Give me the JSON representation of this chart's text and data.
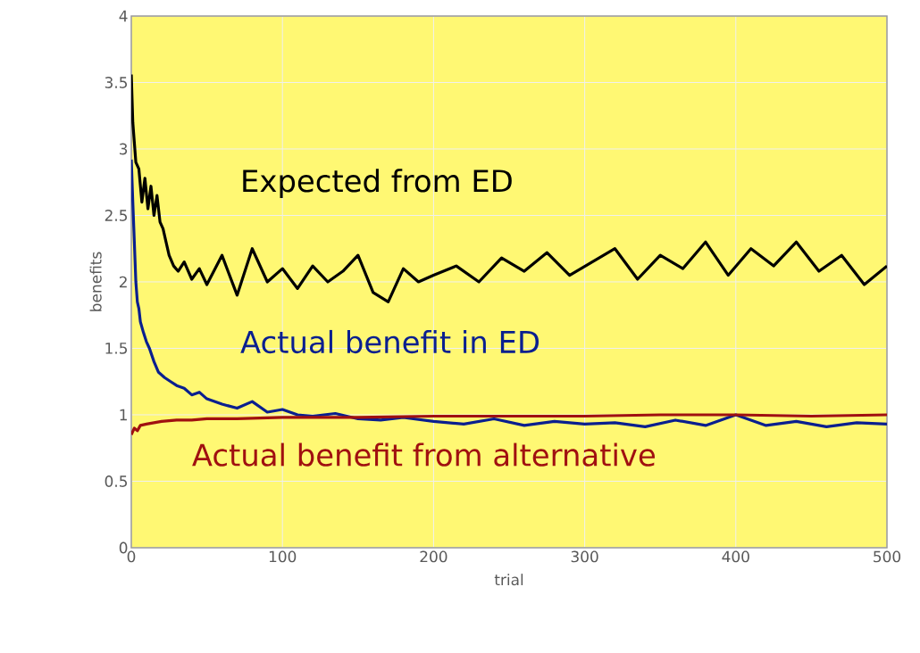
{
  "chart_data": {
    "type": "line",
    "xlabel": "trial",
    "ylabel": "benefits",
    "xlim": [
      0,
      500
    ],
    "ylim": [
      0,
      4
    ],
    "xticks": [
      0,
      100,
      200,
      300,
      400,
      500
    ],
    "yticks": [
      0,
      0.5,
      1,
      1.5,
      2,
      2.5,
      3,
      3.5,
      4
    ],
    "grid": true,
    "legend": false,
    "marker": "none",
    "line_style": "solid",
    "series": [
      {
        "name": "Expected from ED",
        "color": "#000000",
        "x": [
          0,
          1,
          2,
          3,
          5,
          7,
          9,
          11,
          13,
          15,
          17,
          19,
          21,
          23,
          25,
          28,
          31,
          35,
          40,
          45,
          50,
          60,
          70,
          80,
          90,
          100,
          110,
          120,
          130,
          140,
          150,
          160,
          170,
          180,
          190,
          200,
          215,
          230,
          245,
          260,
          275,
          290,
          305,
          320,
          335,
          350,
          365,
          380,
          395,
          410,
          425,
          440,
          455,
          470,
          485,
          500
        ],
        "values": [
          3.56,
          3.2,
          3.05,
          2.9,
          2.85,
          2.6,
          2.78,
          2.55,
          2.72,
          2.5,
          2.65,
          2.45,
          2.4,
          2.3,
          2.2,
          2.12,
          2.08,
          2.15,
          2.02,
          2.1,
          1.98,
          2.2,
          1.9,
          2.25,
          2.0,
          2.1,
          1.95,
          2.12,
          2.0,
          2.08,
          2.2,
          1.92,
          1.85,
          2.1,
          2.0,
          2.05,
          2.12,
          2.0,
          2.18,
          2.08,
          2.22,
          2.05,
          2.15,
          2.25,
          2.02,
          2.2,
          2.1,
          2.3,
          2.05,
          2.25,
          2.12,
          2.3,
          2.08,
          2.2,
          1.98,
          2.12
        ]
      },
      {
        "name": "Actual benefit in ED",
        "color": "#0a1f8f",
        "x": [
          0,
          1,
          2,
          3,
          4,
          5,
          6,
          8,
          10,
          12,
          15,
          18,
          22,
          26,
          30,
          35,
          40,
          45,
          50,
          60,
          70,
          80,
          90,
          100,
          110,
          120,
          135,
          150,
          165,
          180,
          200,
          220,
          240,
          260,
          280,
          300,
          320,
          340,
          360,
          380,
          400,
          420,
          440,
          460,
          480,
          500
        ],
        "values": [
          2.92,
          2.6,
          2.3,
          2.0,
          1.85,
          1.8,
          1.7,
          1.62,
          1.55,
          1.5,
          1.4,
          1.32,
          1.28,
          1.25,
          1.22,
          1.2,
          1.15,
          1.17,
          1.12,
          1.08,
          1.05,
          1.1,
          1.02,
          1.04,
          1.0,
          0.99,
          1.01,
          0.97,
          0.96,
          0.98,
          0.95,
          0.93,
          0.97,
          0.92,
          0.95,
          0.93,
          0.94,
          0.91,
          0.96,
          0.92,
          1.0,
          0.92,
          0.95,
          0.91,
          0.94,
          0.93
        ]
      },
      {
        "name": "Actual benefit from alternative",
        "color": "#a01010",
        "x": [
          0,
          2,
          4,
          6,
          10,
          15,
          20,
          30,
          40,
          50,
          70,
          100,
          150,
          200,
          250,
          300,
          350,
          400,
          450,
          500
        ],
        "values": [
          0.85,
          0.9,
          0.88,
          0.92,
          0.93,
          0.94,
          0.95,
          0.96,
          0.96,
          0.97,
          0.97,
          0.98,
          0.98,
          0.99,
          0.99,
          0.99,
          1.0,
          1.0,
          0.99,
          1.0
        ]
      }
    ]
  }
}
